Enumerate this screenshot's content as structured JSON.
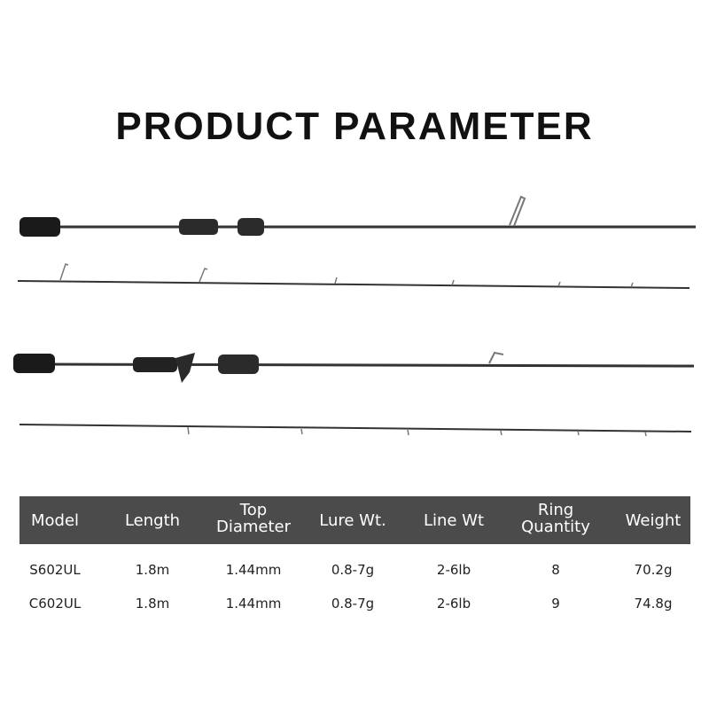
{
  "title": "PRODUCT PARAMETER",
  "table": {
    "headers": [
      [
        "Model"
      ],
      [
        "Length"
      ],
      [
        "Top",
        "Diameter"
      ],
      [
        "Lure Wt."
      ],
      [
        "Line Wt"
      ],
      [
        "Ring",
        "Quantity"
      ],
      [
        "Weight"
      ]
    ],
    "rows": [
      [
        "S602UL",
        "1.8m",
        "1.44mm",
        "0.8-7g",
        "2-6lb",
        "8",
        "70.2g"
      ],
      [
        "C602UL",
        "1.8m",
        "1.44mm",
        "0.8-7g",
        "2-6lb",
        "9",
        "74.8g"
      ]
    ]
  },
  "colors": {
    "header_bg": "#4b4b4b",
    "rod": "#2a2a2a"
  }
}
